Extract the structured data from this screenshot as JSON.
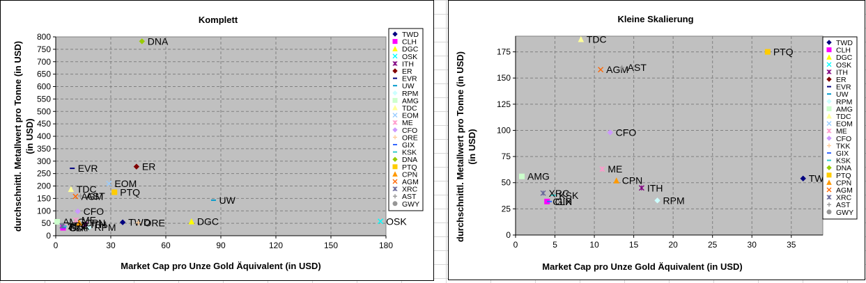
{
  "charts": [
    {
      "chart_data": {
        "type": "scatter",
        "title": "Komplett",
        "xlabel": "Market Cap pro Unze Gold Äquivalent (in USD)",
        "ylabel": "durchschnittl. Metallwert pro Tonne (in USD)",
        "xlim": [
          0,
          180
        ],
        "ylim": [
          0,
          800
        ],
        "xticks": [
          0,
          30,
          60,
          90,
          120,
          150,
          180
        ],
        "yticks": [
          0,
          50,
          100,
          150,
          200,
          250,
          300,
          350,
          400,
          450,
          500,
          550,
          600,
          650,
          700,
          750,
          800
        ],
        "grid": true,
        "legend_position": "right",
        "plot_background": "#c0c0c0",
        "series": [
          {
            "name": "TWD",
            "x": 36.5,
            "y": 54,
            "color": "#000080",
            "marker": "diamond"
          },
          {
            "name": "CLH",
            "x": 4,
            "y": 32,
            "color": "#ff00ff",
            "marker": "square"
          },
          {
            "name": "DGC",
            "x": 74,
            "y": 57,
            "color": "#ffff00",
            "marker": "triangle"
          },
          {
            "name": "OSK",
            "x": 177,
            "y": 58,
            "color": "#00ffff",
            "marker": "x"
          },
          {
            "name": "ITH",
            "x": 16,
            "y": 45,
            "color": "#800080",
            "marker": "star"
          },
          {
            "name": "ER",
            "x": 44,
            "y": 278,
            "color": "#800000",
            "marker": "diamond"
          },
          {
            "name": "EVR",
            "x": 9,
            "y": 271,
            "color": "#000080",
            "marker": "dash"
          },
          {
            "name": "UW",
            "x": 86,
            "y": 143,
            "color": "#0099cc",
            "marker": "dash"
          },
          {
            "name": "RPM",
            "x": 18,
            "y": 33,
            "color": "#ccffff",
            "marker": "diamond"
          },
          {
            "name": "AMG",
            "x": 0.8,
            "y": 56,
            "color": "#ccffcc",
            "marker": "square"
          },
          {
            "name": "TDC",
            "x": 8.3,
            "y": 187,
            "color": "#ffff99",
            "marker": "triangle"
          },
          {
            "name": "EOM",
            "x": 29,
            "y": 210,
            "color": "#99ccff",
            "marker": "x"
          },
          {
            "name": "ME",
            "x": 11,
            "y": 63,
            "color": "#ff99cc",
            "marker": "star"
          },
          {
            "name": "CFO",
            "x": 12,
            "y": 98,
            "color": "#cc99ff",
            "marker": "diamond"
          },
          {
            "name": "ORE",
            "x": 45,
            "y": 52,
            "color": "#ffcc99",
            "marker": "plus"
          },
          {
            "name": "GIX",
            "x": 4.3,
            "y": 32,
            "color": "#3366ff",
            "marker": "dash"
          },
          {
            "name": "KSK",
            "x": 4.8,
            "y": 38,
            "color": "#33cccc",
            "marker": "dash"
          },
          {
            "name": "DNA",
            "x": 47,
            "y": 782,
            "color": "#99cc00",
            "marker": "diamond"
          },
          {
            "name": "PTQ",
            "x": 32,
            "y": 175,
            "color": "#ffcc00",
            "marker": "square"
          },
          {
            "name": "CPN",
            "x": 12.8,
            "y": 52,
            "color": "#ff9900",
            "marker": "triangle"
          },
          {
            "name": "AGM",
            "x": 10.8,
            "y": 158,
            "color": "#ff6600",
            "marker": "x"
          },
          {
            "name": "XRC",
            "x": 3.5,
            "y": 40,
            "color": "#666699",
            "marker": "star"
          },
          {
            "name": "AST",
            "x": 13.5,
            "y": 160,
            "color": "#969696",
            "marker": "plus"
          },
          {
            "name": "GWY",
            "x": 0,
            "y": 0,
            "color": "#969696",
            "marker": "circle",
            "legend_only": true
          }
        ]
      }
    },
    {
      "chart_data": {
        "type": "scatter",
        "title": "Kleine Skalierung",
        "xlabel": "Market Cap pro Unze Gold Äquivalent (in USD)",
        "ylabel": "durchschnittl. Metallwert pro Tonne (in USD)",
        "xlim": [
          0,
          39
        ],
        "ylim": [
          0,
          190
        ],
        "xticks": [
          0,
          5,
          10,
          15,
          20,
          25,
          30,
          35
        ],
        "yticks": [
          0,
          25,
          50,
          75,
          100,
          125,
          150,
          175
        ],
        "grid": true,
        "legend_position": "right",
        "plot_background": "#c0c0c0",
        "series": [
          {
            "name": "TWD",
            "x": 36.5,
            "y": 54,
            "color": "#000080",
            "marker": "diamond"
          },
          {
            "name": "CLH",
            "x": 4,
            "y": 32,
            "color": "#ff00ff",
            "marker": "square"
          },
          {
            "name": "DGC",
            "color": "#ffff00",
            "marker": "triangle",
            "legend_only": true
          },
          {
            "name": "OSK",
            "color": "#00ffff",
            "marker": "x",
            "legend_only": true
          },
          {
            "name": "ITH",
            "x": 16,
            "y": 45,
            "color": "#800080",
            "marker": "star"
          },
          {
            "name": "ER",
            "color": "#800000",
            "marker": "diamond",
            "legend_only": true
          },
          {
            "name": "EVR",
            "color": "#000080",
            "marker": "dash",
            "legend_only": true
          },
          {
            "name": "UW",
            "color": "#0099cc",
            "marker": "dash",
            "legend_only": true
          },
          {
            "name": "RPM",
            "x": 18,
            "y": 33,
            "color": "#ccffff",
            "marker": "diamond"
          },
          {
            "name": "AMG",
            "x": 0.8,
            "y": 56,
            "color": "#ccffcc",
            "marker": "square"
          },
          {
            "name": "TDC",
            "x": 8.3,
            "y": 187,
            "color": "#ffff99",
            "marker": "triangle"
          },
          {
            "name": "EOM",
            "color": "#99ccff",
            "marker": "x",
            "legend_only": true
          },
          {
            "name": "ME",
            "x": 11,
            "y": 63,
            "color": "#ff99cc",
            "marker": "star"
          },
          {
            "name": "CFO",
            "x": 12,
            "y": 98,
            "color": "#cc99ff",
            "marker": "diamond"
          },
          {
            "name": "TKK",
            "color": "#ffcc99",
            "marker": "plus",
            "legend_only": true
          },
          {
            "name": "GIX",
            "x": 4.3,
            "y": 32,
            "color": "#3366ff",
            "marker": "dash"
          },
          {
            "name": "KSK",
            "x": 4.8,
            "y": 38,
            "color": "#33cccc",
            "marker": "dash"
          },
          {
            "name": "DNA",
            "color": "#99cc00",
            "marker": "diamond",
            "legend_only": true
          },
          {
            "name": "PTQ",
            "x": 32,
            "y": 175,
            "color": "#ffcc00",
            "marker": "square"
          },
          {
            "name": "CPN",
            "x": 12.8,
            "y": 52,
            "color": "#ff9900",
            "marker": "triangle"
          },
          {
            "name": "AGM",
            "x": 10.8,
            "y": 158,
            "color": "#ff6600",
            "marker": "x"
          },
          {
            "name": "XRC",
            "x": 3.5,
            "y": 40,
            "color": "#666699",
            "marker": "star"
          },
          {
            "name": "AST",
            "x": 13.5,
            "y": 160,
            "color": "#969696",
            "marker": "plus"
          },
          {
            "name": "GWY",
            "color": "#969696",
            "marker": "circle",
            "legend_only": true
          }
        ]
      }
    }
  ]
}
